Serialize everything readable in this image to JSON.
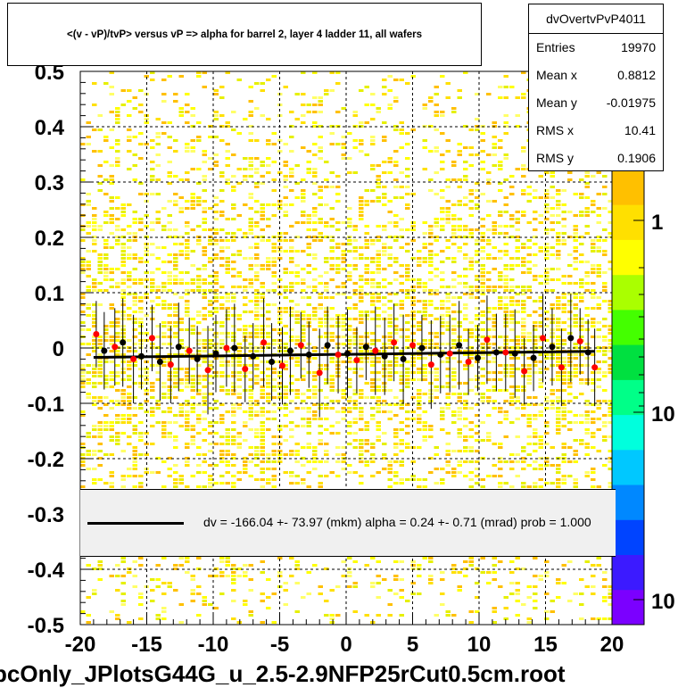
{
  "title": "<(v - vP)/tvP> versus   vP => alpha for barrel 2, layer 4 ladder 11, all wafers",
  "stats": {
    "name": "dvOvertvPvP4011",
    "rows": [
      {
        "label": "Entries",
        "value": "19970"
      },
      {
        "label": "Mean x",
        "value": "0.8812"
      },
      {
        "label": "Mean y",
        "value": "-0.01975"
      },
      {
        "label": "RMS x",
        "value": "10.41"
      },
      {
        "label": "RMS y",
        "value": "0.1906"
      }
    ]
  },
  "fit_legend": "dv = -166.04 +- 73.97 (mkm) alpha =    0.24 +-  0.71 (mrad) prob = 1.000",
  "filename": "pcOnly_JPlotsG44G_u_2.5-2.9NFP25rCut0.5cm.root",
  "colors": {
    "fit_line": "#000000",
    "red_points": "#ff0000",
    "black_points": "#000000",
    "palette": [
      "#7b00ff",
      "#3c1aff",
      "#0044ff",
      "#0088ff",
      "#00c8ff",
      "#00ffdd",
      "#00ff88",
      "#00e040",
      "#44ff00",
      "#aaff00",
      "#ffff00",
      "#ffe000",
      "#ffc000"
    ]
  },
  "chart_data": {
    "type": "scatter",
    "xlim": [
      -20,
      20
    ],
    "ylim": [
      -0.5,
      0.5
    ],
    "x_ticks": [
      -20,
      -15,
      -10,
      -5,
      0,
      5,
      10,
      15,
      20
    ],
    "x_tick_labels": [
      "-20",
      "-15",
      "-10",
      "-5",
      "0",
      "5",
      "10",
      "15",
      "20"
    ],
    "y_ticks": [
      -0.5,
      -0.4,
      -0.3,
      -0.2,
      -0.1,
      0,
      0.1,
      0.2,
      0.3,
      0.4,
      0.5
    ],
    "y_tick_labels": [
      "-0.5",
      "-0.4",
      "-0.3",
      "-0.2",
      "-0.1",
      "0",
      "0.1",
      "0.2",
      "0.3",
      "0.4",
      "0.5"
    ],
    "z_tick_labels": [
      "1",
      "10",
      "10"
    ],
    "grid": true,
    "fit_line": {
      "x": [
        -19,
        18.7
      ],
      "y": [
        -0.017,
        -0.006
      ]
    },
    "series": [
      {
        "marker": "red",
        "x": [
          -18.8,
          -17.4,
          -16.0,
          -14.6,
          -13.2,
          -11.8,
          -10.4,
          -9.0,
          -7.6,
          -6.2,
          -4.8,
          -3.4,
          -2.0,
          -0.6,
          0.8,
          2.2,
          3.6,
          5.0,
          6.4,
          7.8,
          9.2,
          10.6,
          12.0,
          13.4,
          14.8,
          16.2,
          17.6,
          18.7
        ],
        "y": [
          0.025,
          0.002,
          -0.02,
          0.018,
          -0.03,
          -0.005,
          -0.04,
          0.0,
          -0.038,
          0.01,
          -0.032,
          0.005,
          -0.045,
          -0.012,
          -0.022,
          -0.005,
          0.01,
          0.005,
          -0.03,
          -0.01,
          -0.025,
          0.015,
          -0.008,
          -0.042,
          0.018,
          -0.035,
          0.012,
          -0.035
        ],
        "err": [
          0.06,
          0.07,
          0.08,
          0.06,
          0.07,
          0.06,
          0.08,
          0.07,
          0.06,
          0.08,
          0.07,
          0.06,
          0.08,
          0.07,
          0.06,
          0.08,
          0.07,
          0.06,
          0.08,
          0.07,
          0.06,
          0.08,
          0.07,
          0.06,
          0.08,
          0.07,
          0.06,
          0.07
        ]
      },
      {
        "marker": "black",
        "x": [
          -18.2,
          -16.8,
          -15.4,
          -14.0,
          -12.6,
          -11.2,
          -9.8,
          -8.4,
          -7.0,
          -5.6,
          -4.2,
          -2.8,
          -1.4,
          0.1,
          1.5,
          2.9,
          4.3,
          5.7,
          7.1,
          8.5,
          9.9,
          11.3,
          12.7,
          14.1,
          15.5,
          16.9,
          18.2
        ],
        "y": [
          -0.005,
          0.01,
          -0.015,
          -0.025,
          0.002,
          -0.02,
          -0.01,
          0.0,
          -0.015,
          -0.025,
          -0.005,
          -0.012,
          0.005,
          -0.01,
          0.002,
          -0.015,
          -0.02,
          0.0,
          -0.012,
          0.005,
          -0.018,
          -0.008,
          -0.01,
          -0.018,
          0.002,
          0.018,
          -0.008
        ],
        "err": [
          0.07,
          0.08,
          0.06,
          0.07,
          0.08,
          0.06,
          0.07,
          0.08,
          0.06,
          0.07,
          0.08,
          0.06,
          0.07,
          0.08,
          0.06,
          0.07,
          0.08,
          0.06,
          0.07,
          0.08,
          0.06,
          0.07,
          0.08,
          0.06,
          0.07,
          0.08,
          0.06
        ]
      }
    ]
  }
}
